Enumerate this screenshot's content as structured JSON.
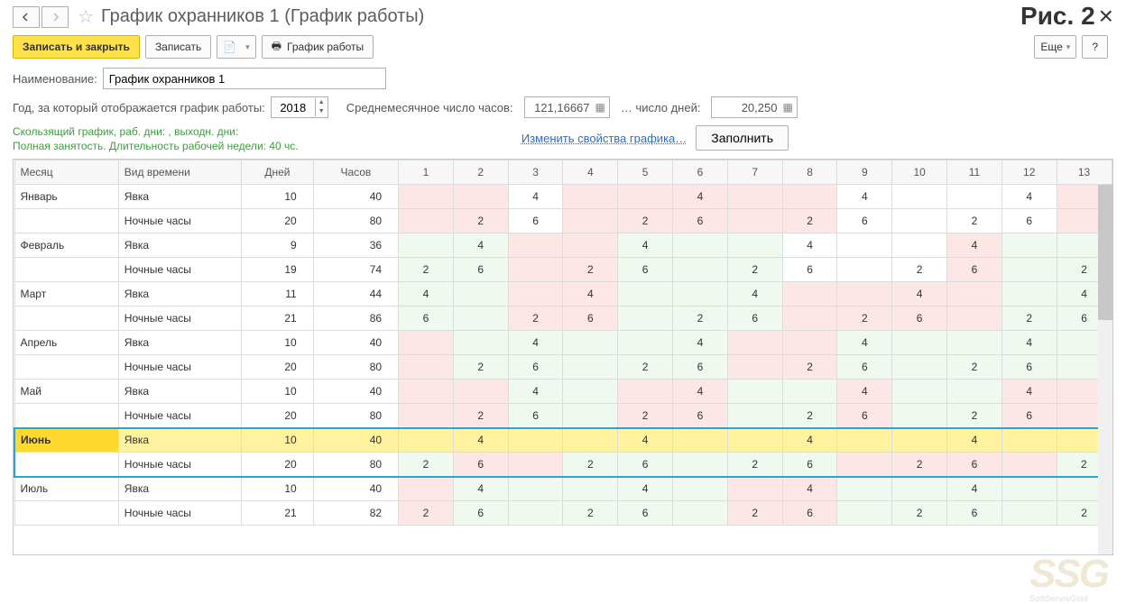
{
  "header": {
    "title": "График охранников 1 (График работы)",
    "figure_label": "Рис. 2",
    "close_glyph": "×"
  },
  "toolbar": {
    "save_close": "Записать и закрыть",
    "save": "Записать",
    "print": "График работы",
    "more": "Еще",
    "help": "?"
  },
  "fields": {
    "name_label": "Наименование:",
    "name_value": "График охранников 1",
    "year_label": "Год, за который отображается график работы:",
    "year_value": "2018",
    "avg_hours_label": "Среднемесячное число часов:",
    "avg_hours_value": "121,16667",
    "days_label": "… число дней:",
    "days_value": "20,250"
  },
  "info": {
    "line1": "Скользящий график, раб. дни: , выходн. дни:",
    "line2": "Полная занятость. Длительность рабочей недели: 40 чс."
  },
  "actions": {
    "edit_props": "Изменить свойства графика…",
    "fill": "Заполнить"
  },
  "table": {
    "headers": {
      "month": "Месяц",
      "type": "Вид времени",
      "days": "Дней",
      "hours": "Часов"
    },
    "day_cols": [
      "1",
      "2",
      "3",
      "4",
      "5",
      "6",
      "7",
      "8",
      "9",
      "10",
      "11",
      "12",
      "13"
    ],
    "months": [
      {
        "name": "Январь",
        "highlight": false,
        "rows": [
          {
            "type": "Явка",
            "days": "10",
            "hours": "40",
            "cells": [
              {
                "v": "",
                "c": "pink"
              },
              {
                "v": "",
                "c": "pink"
              },
              {
                "v": "4"
              },
              {
                "v": "",
                "c": "pink"
              },
              {
                "v": "",
                "c": "pink"
              },
              {
                "v": "4",
                "c": "pink"
              },
              {
                "v": "",
                "c": "pink"
              },
              {
                "v": "",
                "c": "pink"
              },
              {
                "v": "4"
              },
              {
                "v": ""
              },
              {
                "v": ""
              },
              {
                "v": "4"
              },
              {
                "v": "",
                "c": "pink"
              }
            ]
          },
          {
            "type": "Ночные часы",
            "days": "20",
            "hours": "80",
            "cells": [
              {
                "v": "",
                "c": "pink"
              },
              {
                "v": "2",
                "c": "pink"
              },
              {
                "v": "6"
              },
              {
                "v": "",
                "c": "pink"
              },
              {
                "v": "2",
                "c": "pink"
              },
              {
                "v": "6",
                "c": "pink"
              },
              {
                "v": "",
                "c": "pink"
              },
              {
                "v": "2",
                "c": "pink"
              },
              {
                "v": "6"
              },
              {
                "v": ""
              },
              {
                "v": "2"
              },
              {
                "v": "6"
              },
              {
                "v": "",
                "c": "pink"
              }
            ]
          }
        ]
      },
      {
        "name": "Февраль",
        "highlight": false,
        "rows": [
          {
            "type": "Явка",
            "days": "9",
            "hours": "36",
            "cells": [
              {
                "v": "",
                "c": "lgreen"
              },
              {
                "v": "4",
                "c": "lgreen"
              },
              {
                "v": "",
                "c": "pink"
              },
              {
                "v": "",
                "c": "pink"
              },
              {
                "v": "4",
                "c": "lgreen"
              },
              {
                "v": "",
                "c": "lgreen"
              },
              {
                "v": "",
                "c": "lgreen"
              },
              {
                "v": "4"
              },
              {
                "v": ""
              },
              {
                "v": ""
              },
              {
                "v": "4",
                "c": "pink"
              },
              {
                "v": "",
                "c": "lgreen"
              },
              {
                "v": "",
                "c": "lgreen"
              }
            ]
          },
          {
            "type": "Ночные часы",
            "days": "19",
            "hours": "74",
            "cells": [
              {
                "v": "2",
                "c": "lgreen"
              },
              {
                "v": "6",
                "c": "lgreen"
              },
              {
                "v": "",
                "c": "pink"
              },
              {
                "v": "2",
                "c": "pink"
              },
              {
                "v": "6",
                "c": "lgreen"
              },
              {
                "v": "",
                "c": "lgreen"
              },
              {
                "v": "2",
                "c": "lgreen"
              },
              {
                "v": "6"
              },
              {
                "v": ""
              },
              {
                "v": "2"
              },
              {
                "v": "6",
                "c": "pink"
              },
              {
                "v": "",
                "c": "lgreen"
              },
              {
                "v": "2",
                "c": "lgreen"
              }
            ]
          }
        ]
      },
      {
        "name": "Март",
        "highlight": false,
        "rows": [
          {
            "type": "Явка",
            "days": "11",
            "hours": "44",
            "cells": [
              {
                "v": "4",
                "c": "lgreen"
              },
              {
                "v": "",
                "c": "lgreen"
              },
              {
                "v": "",
                "c": "pink"
              },
              {
                "v": "4",
                "c": "pink"
              },
              {
                "v": "",
                "c": "lgreen"
              },
              {
                "v": "",
                "c": "lgreen"
              },
              {
                "v": "4",
                "c": "lgreen"
              },
              {
                "v": "",
                "c": "pink"
              },
              {
                "v": "",
                "c": "pink"
              },
              {
                "v": "4",
                "c": "pink"
              },
              {
                "v": "",
                "c": "pink"
              },
              {
                "v": "",
                "c": "lgreen"
              },
              {
                "v": "4",
                "c": "lgreen"
              }
            ]
          },
          {
            "type": "Ночные часы",
            "days": "21",
            "hours": "86",
            "cells": [
              {
                "v": "6",
                "c": "lgreen"
              },
              {
                "v": "",
                "c": "lgreen"
              },
              {
                "v": "2",
                "c": "pink"
              },
              {
                "v": "6",
                "c": "pink"
              },
              {
                "v": "",
                "c": "lgreen"
              },
              {
                "v": "2",
                "c": "lgreen"
              },
              {
                "v": "6",
                "c": "lgreen"
              },
              {
                "v": "",
                "c": "pink"
              },
              {
                "v": "2",
                "c": "pink"
              },
              {
                "v": "6",
                "c": "pink"
              },
              {
                "v": "",
                "c": "pink"
              },
              {
                "v": "2",
                "c": "lgreen"
              },
              {
                "v": "6",
                "c": "lgreen"
              }
            ]
          }
        ]
      },
      {
        "name": "Апрель",
        "highlight": false,
        "rows": [
          {
            "type": "Явка",
            "days": "10",
            "hours": "40",
            "cells": [
              {
                "v": "",
                "c": "pink"
              },
              {
                "v": "",
                "c": "lgreen"
              },
              {
                "v": "4",
                "c": "lgreen"
              },
              {
                "v": "",
                "c": "lgreen"
              },
              {
                "v": "",
                "c": "lgreen"
              },
              {
                "v": "4",
                "c": "lgreen"
              },
              {
                "v": "",
                "c": "pink"
              },
              {
                "v": "",
                "c": "pink"
              },
              {
                "v": "4",
                "c": "lgreen"
              },
              {
                "v": "",
                "c": "lgreen"
              },
              {
                "v": "",
                "c": "lgreen"
              },
              {
                "v": "4",
                "c": "lgreen"
              },
              {
                "v": "",
                "c": "lgreen"
              }
            ]
          },
          {
            "type": "Ночные часы",
            "days": "20",
            "hours": "80",
            "cells": [
              {
                "v": "",
                "c": "pink"
              },
              {
                "v": "2",
                "c": "lgreen"
              },
              {
                "v": "6",
                "c": "lgreen"
              },
              {
                "v": "",
                "c": "lgreen"
              },
              {
                "v": "2",
                "c": "lgreen"
              },
              {
                "v": "6",
                "c": "lgreen"
              },
              {
                "v": "",
                "c": "pink"
              },
              {
                "v": "2",
                "c": "pink"
              },
              {
                "v": "6",
                "c": "lgreen"
              },
              {
                "v": "",
                "c": "lgreen"
              },
              {
                "v": "2",
                "c": "lgreen"
              },
              {
                "v": "6",
                "c": "lgreen"
              },
              {
                "v": "",
                "c": "lgreen"
              }
            ]
          }
        ]
      },
      {
        "name": "Май",
        "highlight": false,
        "rows": [
          {
            "type": "Явка",
            "days": "10",
            "hours": "40",
            "cells": [
              {
                "v": "",
                "c": "pink"
              },
              {
                "v": "",
                "c": "pink"
              },
              {
                "v": "4",
                "c": "lgreen"
              },
              {
                "v": "",
                "c": "lgreen"
              },
              {
                "v": "",
                "c": "pink"
              },
              {
                "v": "4",
                "c": "pink"
              },
              {
                "v": "",
                "c": "lgreen"
              },
              {
                "v": "",
                "c": "lgreen"
              },
              {
                "v": "4",
                "c": "pink"
              },
              {
                "v": "",
                "c": "lgreen"
              },
              {
                "v": "",
                "c": "lgreen"
              },
              {
                "v": "4",
                "c": "pink"
              },
              {
                "v": "",
                "c": "pink"
              }
            ]
          },
          {
            "type": "Ночные часы",
            "days": "20",
            "hours": "80",
            "cells": [
              {
                "v": "",
                "c": "pink"
              },
              {
                "v": "2",
                "c": "pink"
              },
              {
                "v": "6",
                "c": "lgreen"
              },
              {
                "v": "",
                "c": "lgreen"
              },
              {
                "v": "2",
                "c": "pink"
              },
              {
                "v": "6",
                "c": "pink"
              },
              {
                "v": "",
                "c": "lgreen"
              },
              {
                "v": "2",
                "c": "lgreen"
              },
              {
                "v": "6",
                "c": "pink"
              },
              {
                "v": "",
                "c": "lgreen"
              },
              {
                "v": "2",
                "c": "lgreen"
              },
              {
                "v": "6",
                "c": "pink"
              },
              {
                "v": "",
                "c": "pink"
              }
            ]
          }
        ]
      },
      {
        "name": "Июнь",
        "highlight": true,
        "rows": [
          {
            "type": "Явка",
            "days": "10",
            "hours": "40",
            "cells": [
              {
                "v": ""
              },
              {
                "v": "4"
              },
              {
                "v": ""
              },
              {
                "v": ""
              },
              {
                "v": "4"
              },
              {
                "v": ""
              },
              {
                "v": ""
              },
              {
                "v": "4"
              },
              {
                "v": ""
              },
              {
                "v": ""
              },
              {
                "v": "4"
              },
              {
                "v": ""
              },
              {
                "v": ""
              }
            ]
          },
          {
            "type": "Ночные часы",
            "days": "20",
            "hours": "80",
            "cells": [
              {
                "v": "2",
                "c": "lgreen"
              },
              {
                "v": "6",
                "c": "pink"
              },
              {
                "v": "",
                "c": "pink"
              },
              {
                "v": "2",
                "c": "lgreen"
              },
              {
                "v": "6",
                "c": "lgreen"
              },
              {
                "v": "",
                "c": "lgreen"
              },
              {
                "v": "2",
                "c": "lgreen"
              },
              {
                "v": "6",
                "c": "lgreen"
              },
              {
                "v": "",
                "c": "pink"
              },
              {
                "v": "2",
                "c": "pink"
              },
              {
                "v": "6",
                "c": "pink"
              },
              {
                "v": "",
                "c": "pink"
              },
              {
                "v": "2",
                "c": "lgreen"
              }
            ]
          }
        ]
      },
      {
        "name": "Июль",
        "highlight": false,
        "rows": [
          {
            "type": "Явка",
            "days": "10",
            "hours": "40",
            "cells": [
              {
                "v": "",
                "c": "pink"
              },
              {
                "v": "4",
                "c": "lgreen"
              },
              {
                "v": "",
                "c": "lgreen"
              },
              {
                "v": "",
                "c": "lgreen"
              },
              {
                "v": "4",
                "c": "lgreen"
              },
              {
                "v": "",
                "c": "lgreen"
              },
              {
                "v": "",
                "c": "pink"
              },
              {
                "v": "4",
                "c": "pink"
              },
              {
                "v": "",
                "c": "lgreen"
              },
              {
                "v": "",
                "c": "lgreen"
              },
              {
                "v": "4",
                "c": "lgreen"
              },
              {
                "v": "",
                "c": "lgreen"
              },
              {
                "v": "",
                "c": "lgreen"
              }
            ]
          },
          {
            "type": "Ночные часы",
            "days": "21",
            "hours": "82",
            "cells": [
              {
                "v": "2",
                "c": "pink"
              },
              {
                "v": "6",
                "c": "lgreen"
              },
              {
                "v": "",
                "c": "lgreen"
              },
              {
                "v": "2",
                "c": "lgreen"
              },
              {
                "v": "6",
                "c": "lgreen"
              },
              {
                "v": "",
                "c": "lgreen"
              },
              {
                "v": "2",
                "c": "pink"
              },
              {
                "v": "6",
                "c": "pink"
              },
              {
                "v": "",
                "c": "lgreen"
              },
              {
                "v": "2",
                "c": "lgreen"
              },
              {
                "v": "6",
                "c": "lgreen"
              },
              {
                "v": "",
                "c": "lgreen"
              },
              {
                "v": "2",
                "c": "lgreen"
              }
            ]
          }
        ]
      }
    ]
  },
  "watermark": {
    "main": "SSG",
    "sub": "SoftServisGold"
  },
  "colors": {
    "pink": "#fce6e6",
    "lgreen": "#f0f9f0",
    "highlight_row": "#fff3a0",
    "highlight_first": "#ffd830",
    "selection_border": "#2aa3d8"
  }
}
